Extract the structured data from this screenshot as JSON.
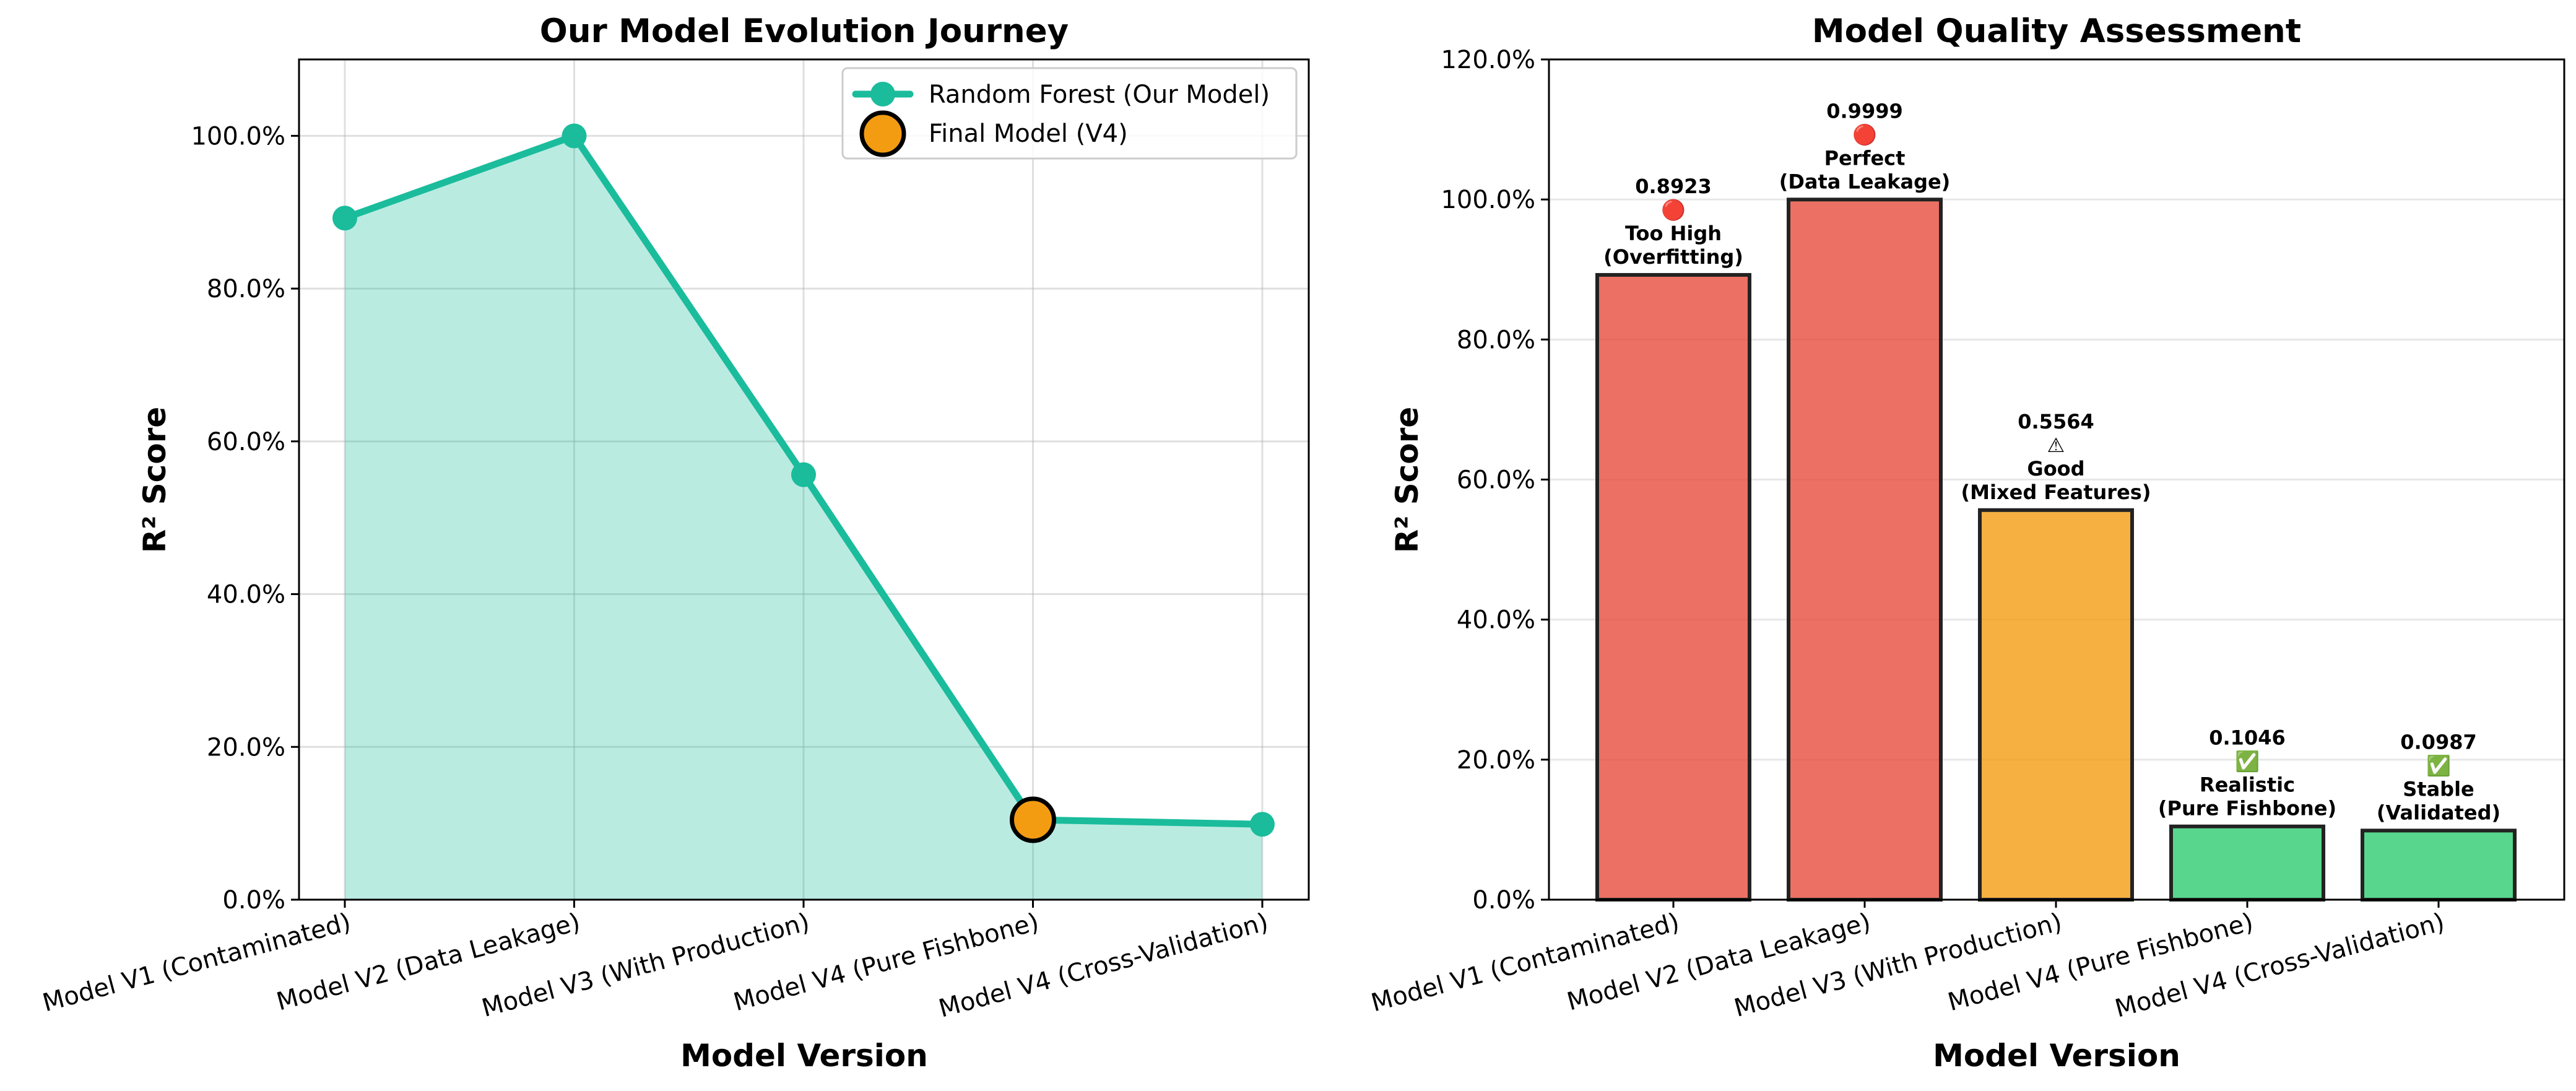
{
  "chart_data": [
    {
      "type": "line",
      "title": "Our Model Evolution Journey",
      "xlabel": "Model Version",
      "ylabel": "R² Score",
      "categories": [
        "Model V1 (Contaminated)",
        "Model V2 (Data Leakage)",
        "Model V3 (With Production)",
        "Model V4 (Pure Fishbone)",
        "Model V4 (Cross-Validation)"
      ],
      "series": [
        {
          "name": "Random Forest (Our Model)",
          "values": [
            0.8923,
            0.9999,
            0.5564,
            0.1046,
            0.0987
          ],
          "color": "#1abc9c",
          "fill": true
        },
        {
          "name": "Final Model (V4)",
          "highlight_index": 3,
          "value": 0.1046,
          "color": "#f39c12"
        }
      ],
      "ylim": [
        0,
        1.1
      ],
      "yticks": [
        "0.0%",
        "20.0%",
        "40.0%",
        "60.0%",
        "80.0%",
        "100.0%"
      ],
      "ytick_values": [
        0,
        0.2,
        0.4,
        0.6,
        0.8,
        1.0
      ],
      "grid": true,
      "legend_position": "top-right"
    },
    {
      "type": "bar",
      "title": "Model Quality Assessment",
      "xlabel": "Model Version",
      "ylabel": "R² Score",
      "categories": [
        "Model V1 (Contaminated)",
        "Model V2 (Data Leakage)",
        "Model V3 (With Production)",
        "Model V4 (Pure Fishbone)",
        "Model V4 (Cross-Validation)"
      ],
      "values": [
        0.8923,
        0.9999,
        0.5564,
        0.1046,
        0.0987
      ],
      "colors": [
        "#e74c3c",
        "#e74c3c",
        "#f39c12",
        "#2ecc71",
        "#2ecc71"
      ],
      "annotations": [
        [
          "0.8923",
          "🔴",
          "Too High",
          "(Overfitting)"
        ],
        [
          "0.9999",
          "🔴",
          "Perfect",
          "(Data Leakage)"
        ],
        [
          "0.5564",
          "⚠",
          "Good",
          "(Mixed Features)"
        ],
        [
          "0.1046",
          "✅",
          "Realistic",
          "(Pure Fishbone)"
        ],
        [
          "0.0987",
          "✅",
          "Stable",
          "(Validated)"
        ]
      ],
      "ylim": [
        0,
        1.2
      ],
      "yticks": [
        "0.0%",
        "20.0%",
        "40.0%",
        "60.0%",
        "80.0%",
        "100.0%",
        "120.0%"
      ],
      "ytick_values": [
        0,
        0.2,
        0.4,
        0.6,
        0.8,
        1.0,
        1.2
      ],
      "grid": true
    }
  ]
}
